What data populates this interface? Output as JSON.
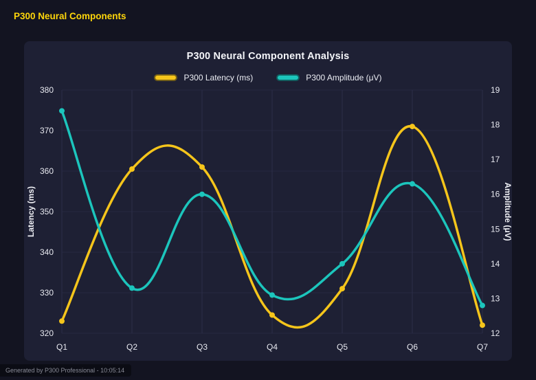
{
  "page": {
    "header": "P300 Neural Components",
    "footer": "Generated by P300 Professional - 10:05:14"
  },
  "colors": {
    "accent_yellow": "#f5c51b",
    "accent_teal": "#1cc5bc",
    "page_bg": "#131421",
    "panel_bg": "#1e2034",
    "grid": "#2c2e47",
    "tick_text": "#e8e9f0"
  },
  "chart_data": {
    "type": "line",
    "title": "P300 Neural Component Analysis",
    "categories": [
      "Q1",
      "Q2",
      "Q3",
      "Q4",
      "Q5",
      "Q6",
      "Q7"
    ],
    "series": [
      {
        "name": "P300 Latency (ms)",
        "axis": "left",
        "color": "#f5c51b",
        "values": [
          323,
          360.5,
          361,
          324.5,
          331,
          371,
          322
        ]
      },
      {
        "name": "P300 Amplitude (μV)",
        "axis": "right",
        "color": "#1cc5bc",
        "values": [
          18.4,
          13.3,
          16.0,
          13.1,
          14.0,
          16.3,
          12.8
        ]
      }
    ],
    "left_axis": {
      "label": "Latency (ms)",
      "min": 320,
      "max": 380,
      "step": 10
    },
    "right_axis": {
      "label": "Amplitude (μV)",
      "min": 12,
      "max": 19,
      "step": 1
    },
    "legend_position": "top",
    "grid": true,
    "line_style": "smooth"
  }
}
